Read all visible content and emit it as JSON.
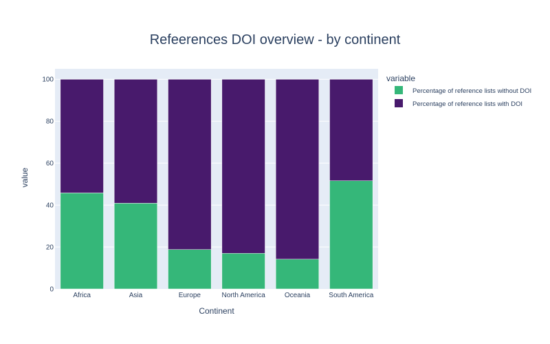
{
  "chart_data": {
    "type": "bar",
    "stacked": true,
    "title": "Refeerences DOI overview - by continent",
    "xlabel": "Continent",
    "ylabel": "value",
    "ylim": [
      0,
      105
    ],
    "yticks": [
      0,
      20,
      40,
      60,
      80,
      100
    ],
    "grid": true,
    "legend_position": "top-right",
    "legend_title": "variable",
    "categories": [
      "Africa",
      "Asia",
      "Europe",
      "North America",
      "Oceania",
      "South America"
    ],
    "series": [
      {
        "name": "Percentage of reference lists without DOI",
        "color": "#35b779",
        "values": [
          45.8,
          40.9,
          18.8,
          17.0,
          14.2,
          51.6
        ]
      },
      {
        "name": "Percentage of reference lists with DOI",
        "color": "#481a6c",
        "values": [
          54.2,
          59.1,
          81.2,
          83.0,
          85.8,
          48.4
        ]
      }
    ]
  },
  "colors": {
    "plot_background": "#e5ecf6",
    "gridline": "#ffffff",
    "text": "#2a3f5f"
  }
}
